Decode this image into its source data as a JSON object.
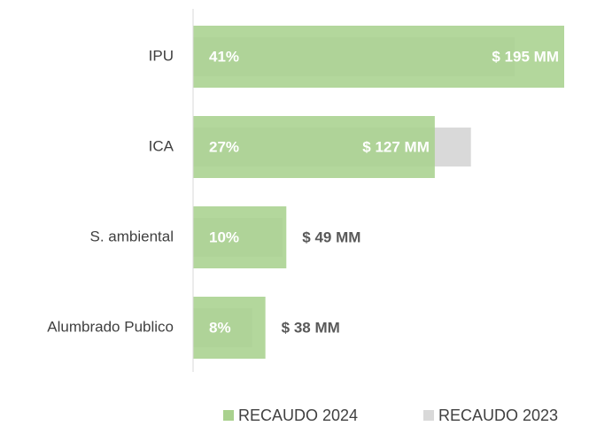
{
  "chart_data": {
    "type": "bar",
    "orientation": "horizontal",
    "categories": [
      "IPU",
      "ICA",
      "S. ambiental",
      "Alumbrado Publico"
    ],
    "series": [
      {
        "name": "RECAUDO 2024",
        "color": "#a9d18e",
        "values": [
          195,
          127,
          49,
          38
        ],
        "value_labels": [
          "$ 195 MM",
          "$ 127 MM",
          "$ 49 MM",
          "$ 38 MM"
        ],
        "share_values": [
          41,
          27,
          10,
          8
        ],
        "share_labels": [
          "41%",
          "27%",
          "10%",
          "8%"
        ]
      },
      {
        "name": "RECAUDO 2023",
        "color": "#d9d9d9",
        "values": [
          169,
          146,
          47,
          31
        ]
      }
    ],
    "legend": "bottom"
  }
}
